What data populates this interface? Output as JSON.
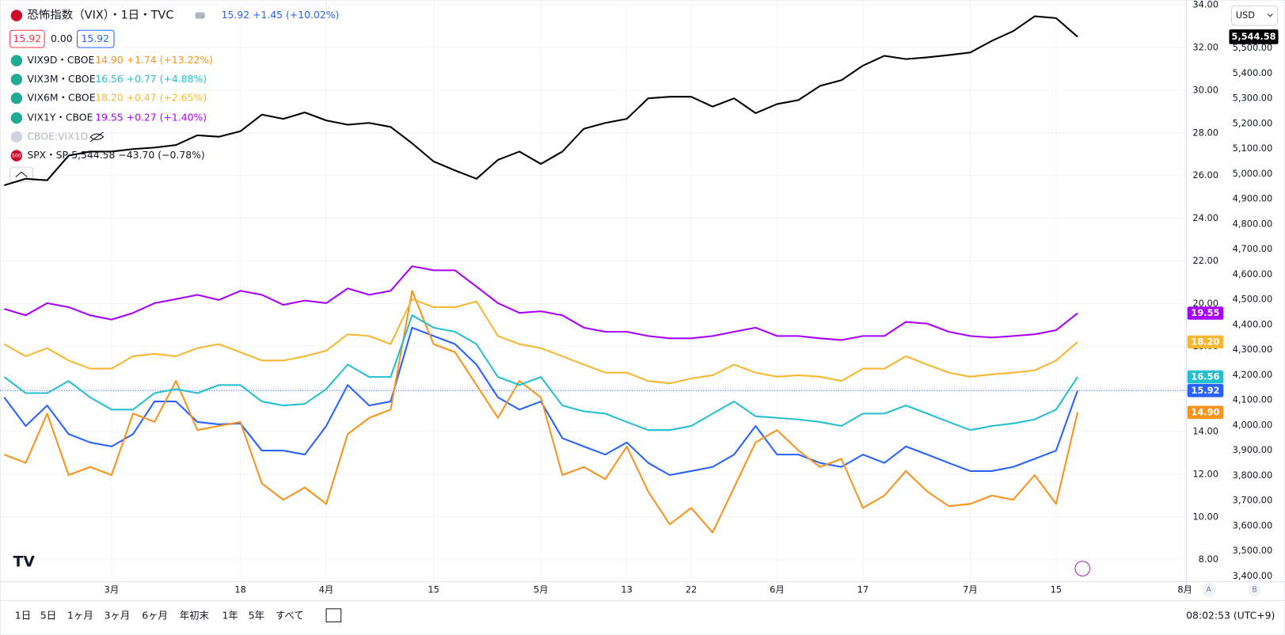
{
  "chart_data": {
    "type": "line",
    "categories": [
      null,
      null,
      null,
      null,
      null,
      "3月",
      null,
      null,
      null,
      null,
      null,
      "18",
      null,
      null,
      null,
      "4月",
      null,
      null,
      null,
      null,
      "15",
      null,
      null,
      null,
      null,
      "5月",
      null,
      null,
      null,
      "13",
      null,
      null,
      "22",
      null,
      null,
      null,
      "6月",
      null,
      null,
      null,
      "17",
      null,
      null,
      null,
      null,
      "7月",
      null,
      null,
      null,
      "15",
      null,
      null,
      null,
      null,
      null,
      "8月"
    ],
    "ylim": [
      6.96,
      34.23
    ],
    "yticks": [
      {
        "value": 8,
        "label": "8.00"
      },
      {
        "value": 10,
        "label": "10.00"
      },
      {
        "value": 12,
        "label": "12.00"
      },
      {
        "value": 14,
        "label": "14.00"
      },
      {
        "value": 16,
        "label": "16.00"
      },
      {
        "value": 18,
        "label": "18.00"
      },
      {
        "value": 20,
        "label": "20.00"
      },
      {
        "value": 22,
        "label": "22.00"
      },
      {
        "value": 24,
        "label": "24.00"
      },
      {
        "value": 26,
        "label": "26.00"
      },
      {
        "value": 28,
        "label": "28.00"
      },
      {
        "value": 30,
        "label": "30.00"
      },
      {
        "value": 32,
        "label": "32.00"
      },
      {
        "value": 34,
        "label": "34.00"
      }
    ],
    "y2lim": [
      3377,
      5691
    ],
    "y2ticks": [
      {
        "value": 3400,
        "label": "3,400.00"
      },
      {
        "value": 3500,
        "label": "3,500.00"
      },
      {
        "value": 3600,
        "label": "3,600.00"
      },
      {
        "value": 3700,
        "label": "3,700.00"
      },
      {
        "value": 3800,
        "label": "3,800.00"
      },
      {
        "value": 3900,
        "label": "3,900.00"
      },
      {
        "value": 4000,
        "label": "4,000.00"
      },
      {
        "value": 4100,
        "label": "4,100.00"
      },
      {
        "value": 4200,
        "label": "4,200.00"
      },
      {
        "value": 4300,
        "label": "4,300.00"
      },
      {
        "value": 4400,
        "label": "4,400.00"
      },
      {
        "value": 4500,
        "label": "4,500.00"
      },
      {
        "value": 4600,
        "label": "4,600.00"
      },
      {
        "value": 4700,
        "label": "4,700.00"
      },
      {
        "value": 4800,
        "label": "4,800.00"
      },
      {
        "value": 4900,
        "label": "4,900.00"
      },
      {
        "value": 5000,
        "label": "5,000.00"
      },
      {
        "value": 5100,
        "label": "5,100.00"
      },
      {
        "value": 5200,
        "label": "5,200.00"
      },
      {
        "value": 5300,
        "label": "5,300.00"
      },
      {
        "value": 5400,
        "label": "5,400.00"
      },
      {
        "value": 5500,
        "label": "5,500.00"
      }
    ],
    "grid": true,
    "currency": "USD",
    "ohlc_boxes": [
      "15.92",
      "0.00",
      "15.92"
    ],
    "hidden_series": "CBOE:VIX1D",
    "series": [
      {
        "name": "恐怖指数（VIX）・1日・TVC",
        "quote": "15.92 +1.45 (+10.02%)",
        "color": "#2962ff",
        "badge": "15.92",
        "values": [
          15.6,
          14.26,
          15.22,
          13.88,
          13.49,
          13.3,
          13.88,
          15.41,
          15.41,
          14.45,
          14.34,
          14.38,
          13.11,
          13.11,
          12.92,
          14.26,
          16.18,
          15.22,
          15.41,
          18.87,
          18.48,
          18.1,
          17.14,
          15.6,
          15.03,
          15.41,
          13.69,
          13.3,
          12.92,
          13.49,
          12.53,
          11.96,
          12.15,
          12.34,
          12.92,
          14.26,
          12.92,
          12.92,
          12.53,
          12.34,
          12.92,
          12.53,
          13.3,
          12.92,
          12.53,
          12.15,
          12.15,
          12.34,
          12.72,
          13.11,
          15.92,
          null,
          null,
          null,
          null,
          null
        ]
      },
      {
        "name": "VIX9D・CBOE",
        "quote": "14.90 +1.74 (+13.22%)",
        "color": "#f7941d",
        "badge": "14.90",
        "values": [
          12.92,
          12.53,
          14.84,
          11.96,
          12.34,
          11.96,
          14.84,
          14.45,
          16.37,
          14.07,
          14.26,
          14.45,
          11.57,
          10.8,
          11.38,
          10.61,
          13.88,
          14.64,
          15.03,
          20.6,
          18.1,
          17.72,
          16.18,
          14.64,
          16.37,
          15.6,
          11.96,
          12.34,
          11.77,
          13.3,
          11.19,
          9.65,
          10.42,
          9.27,
          11.38,
          13.49,
          14.07,
          13.11,
          12.34,
          12.72,
          10.42,
          11.0,
          12.15,
          11.19,
          10.5,
          10.61,
          11.0,
          10.8,
          11.96,
          10.61,
          14.9,
          null,
          null,
          null,
          null,
          null
        ]
      },
      {
        "name": "VIX3M・CBOE",
        "quote": "16.56 +0.77 (+4.88%)",
        "color": "#26bfcf",
        "badge": "16.56",
        "values": [
          16.56,
          15.8,
          15.8,
          16.37,
          15.6,
          15.03,
          15.03,
          15.8,
          15.99,
          15.8,
          16.18,
          16.18,
          15.41,
          15.22,
          15.3,
          15.99,
          17.14,
          16.56,
          16.56,
          19.45,
          18.87,
          18.68,
          18.1,
          16.56,
          16.18,
          16.56,
          15.22,
          14.95,
          14.84,
          14.45,
          14.07,
          14.07,
          14.26,
          14.84,
          15.41,
          14.72,
          14.64,
          14.57,
          14.45,
          14.26,
          14.84,
          14.84,
          15.22,
          14.84,
          14.45,
          14.07,
          14.26,
          14.38,
          14.57,
          15.03,
          16.56,
          null,
          null,
          null,
          null,
          null
        ]
      },
      {
        "name": "VIX6M・CBOE",
        "quote": "18.20 +0.47 (+2.65%)",
        "color": "#f6b733",
        "badge": "18.20",
        "values": [
          18.1,
          17.53,
          17.91,
          17.33,
          16.95,
          16.95,
          17.53,
          17.64,
          17.53,
          17.91,
          18.1,
          17.72,
          17.33,
          17.33,
          17.53,
          17.79,
          18.56,
          18.48,
          18.1,
          20.21,
          19.83,
          19.83,
          20.1,
          18.48,
          18.1,
          17.91,
          17.53,
          17.14,
          16.76,
          16.76,
          16.37,
          16.26,
          16.49,
          16.64,
          17.14,
          16.76,
          16.57,
          16.64,
          16.57,
          16.37,
          16.95,
          16.95,
          17.53,
          17.14,
          16.76,
          16.57,
          16.68,
          16.76,
          16.87,
          17.33,
          18.2,
          null,
          null,
          null,
          null,
          null
        ]
      },
      {
        "name": "VIX1Y・CBOE",
        "quote": "19.55 +0.27 (+1.40%)",
        "color": "#a800ff",
        "badge": "19.55",
        "values": [
          19.75,
          19.45,
          20.02,
          19.83,
          19.45,
          19.25,
          19.56,
          20.02,
          20.21,
          20.41,
          20.17,
          20.6,
          20.41,
          19.94,
          20.14,
          20.02,
          20.71,
          20.41,
          20.6,
          21.75,
          21.56,
          21.56,
          20.79,
          20.02,
          19.56,
          19.64,
          19.45,
          18.87,
          18.68,
          18.68,
          18.48,
          18.37,
          18.37,
          18.48,
          18.68,
          18.87,
          18.48,
          18.48,
          18.37,
          18.29,
          18.48,
          18.48,
          19.14,
          19.06,
          18.68,
          18.48,
          18.41,
          18.48,
          18.56,
          18.75,
          19.55,
          null,
          null,
          null,
          null,
          null
        ]
      },
      {
        "name": "SPX・SP",
        "icon": "500",
        "quote": "5,544.58 −43.70 (−0.78%)",
        "color": "#000000",
        "axis": "y2",
        "badge": "5,544.58",
        "values": [
          4954,
          4980,
          4974,
          5072,
          5088,
          5088,
          5098,
          5104,
          5114,
          5153,
          5147,
          5169,
          5235,
          5218,
          5244,
          5212,
          5195,
          5202,
          5186,
          5121,
          5049,
          5013,
          4980,
          5055,
          5088,
          5039,
          5088,
          5179,
          5202,
          5218,
          5300,
          5306,
          5306,
          5267,
          5300,
          5241,
          5277,
          5293,
          5349,
          5372,
          5430,
          5469,
          5456,
          5463,
          5472,
          5482,
          5528,
          5567,
          5626,
          5619,
          5544.58,
          null,
          null,
          null,
          null,
          null
        ]
      }
    ]
  },
  "toolbar": {
    "timeframes": [
      "1日",
      "5日",
      "1ヶ月",
      "3ヶ月",
      "6ヶ月",
      "年初末",
      "1年",
      "5年",
      "すべて"
    ],
    "clock": "08:02:53 (UTC+9)",
    "scale_buttons": [
      "A",
      "B"
    ]
  }
}
